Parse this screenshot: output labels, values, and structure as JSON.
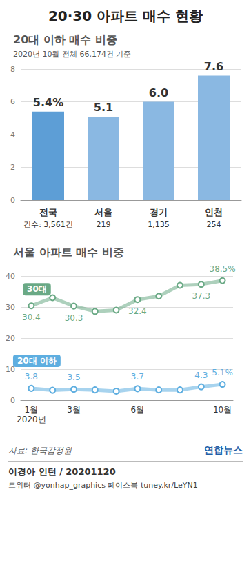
{
  "title": "20·30 아파트 매수 현황",
  "chart_data": [
    {
      "type": "bar",
      "title": "20대 이하 매수 비중",
      "subtitle": "2020년 10월 전체 66,174건 기준",
      "categories": [
        "전국",
        "서울",
        "경기",
        "인천"
      ],
      "values": [
        5.4,
        5.1,
        6.0,
        7.6
      ],
      "value_labels": [
        "5.4%",
        "5.1",
        "6.0",
        "7.6"
      ],
      "count_labels": [
        "건수: 3,561건",
        "219",
        "1,135",
        "254"
      ],
      "colors": [
        "#5d9ed6",
        "#8ab8e2",
        "#8ab8e2",
        "#8ab8e2"
      ],
      "ylim": [
        0,
        8
      ],
      "yticks": [
        0,
        2,
        4,
        6,
        8
      ],
      "grid": true,
      "data_labels": true
    },
    {
      "type": "line",
      "title": "서울 아파트 매수 비중",
      "xlabel": "2020년",
      "categories": [
        "1월",
        null,
        "3월",
        null,
        null,
        "6월",
        null,
        null,
        null,
        "10월"
      ],
      "series": [
        {
          "name": "30대",
          "color": "#6aa985",
          "marker": "circle",
          "values": [
            30.4,
            33.0,
            30.3,
            28.6,
            29.0,
            32.4,
            33.5,
            37.0,
            37.3,
            38.5
          ],
          "value_labels": [
            "30.4",
            null,
            "30.3",
            null,
            null,
            "32.4",
            null,
            null,
            "37.3",
            "38.5%"
          ]
        },
        {
          "name": "20대 이하",
          "color": "#5eaee0",
          "marker": "circle",
          "values": [
            3.8,
            3.2,
            3.5,
            3.3,
            2.9,
            3.7,
            3.3,
            3.3,
            4.3,
            5.1
          ],
          "value_labels": [
            "3.8",
            null,
            "3.5",
            null,
            null,
            "3.7",
            null,
            null,
            "4.3",
            "5.1%"
          ]
        }
      ],
      "ylim": [
        0,
        40
      ],
      "yticks": [
        0,
        10,
        20,
        30,
        40
      ],
      "grid": true,
      "data_labels": true
    }
  ],
  "source": "자료: 한국감정원",
  "logo": "연합뉴스",
  "credit": "이경아 인턴 / 20201120",
  "social": "트위터 @yonhap_graphics  페이스북 tuney.kr/LeYN1"
}
